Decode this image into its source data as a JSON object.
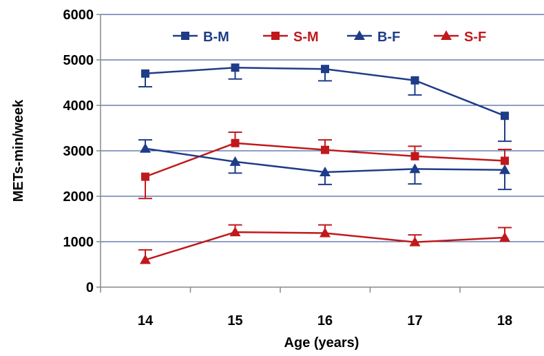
{
  "chart_data": {
    "type": "line",
    "xlabel": "Age (years)",
    "ylabel": "METs-min/week",
    "x": [
      "14",
      "15",
      "16",
      "17",
      "18"
    ],
    "ylim": [
      0,
      6000
    ],
    "yticks": [
      "0",
      "1000",
      "2000",
      "3000",
      "4000",
      "5000",
      "6000"
    ],
    "grid": "horizontal",
    "legend": "top",
    "series": [
      {
        "name": "B-M",
        "marker": "square",
        "color": "#1f3c88",
        "error_direction": "down",
        "values": [
          4700,
          4830,
          4800,
          4550,
          3770
        ],
        "error": [
          290,
          250,
          260,
          320,
          560
        ]
      },
      {
        "name": "S-M",
        "marker": "square",
        "color": "#c0191c",
        "error_direction": "mixed",
        "values": [
          2430,
          3170,
          3020,
          2880,
          2780
        ],
        "error": [
          480,
          240,
          220,
          220,
          250
        ]
      },
      {
        "name": "B-F",
        "marker": "triangle",
        "color": "#1f3c88",
        "error_direction": "mixed",
        "values": [
          3050,
          2760,
          2530,
          2600,
          2580
        ],
        "error": [
          190,
          250,
          270,
          330,
          430
        ]
      },
      {
        "name": "S-F",
        "marker": "triangle",
        "color": "#c0191c",
        "error_direction": "up",
        "values": [
          600,
          1210,
          1190,
          990,
          1090
        ],
        "error": [
          220,
          160,
          180,
          160,
          220
        ]
      }
    ]
  }
}
